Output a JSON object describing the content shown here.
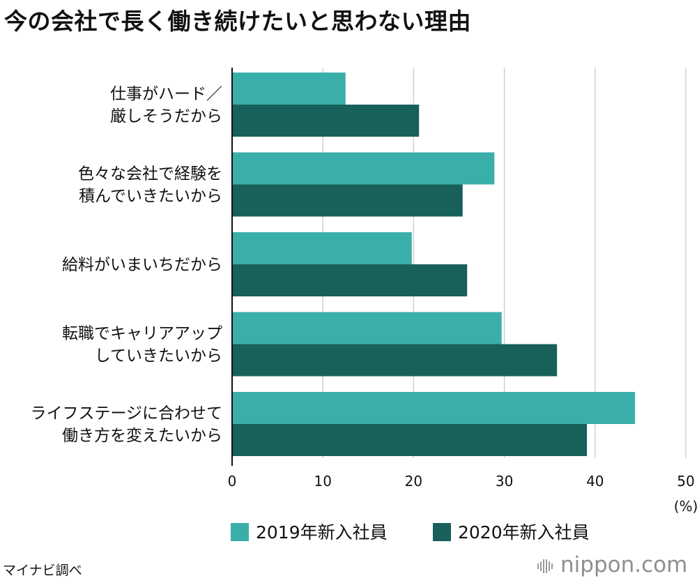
{
  "chart_data": {
    "type": "bar",
    "orientation": "horizontal",
    "title": "今の会社で長く働き続けたいと思わない理由",
    "categories": [
      [
        "仕事がハード／",
        "厳しそうだから"
      ],
      [
        "色々な会社で経験を",
        "積んでいきたいから"
      ],
      [
        "給料がいまいちだから"
      ],
      [
        "転職でキャリアアップ",
        "していきたいから"
      ],
      [
        "ライフステージに合わせて",
        "働き方を変えたいから"
      ]
    ],
    "series": [
      {
        "name": "2019年新入社員",
        "color": "#3aafa9",
        "values": [
          12.5,
          28.9,
          19.8,
          29.7,
          44.4
        ]
      },
      {
        "name": "2020年新入社員",
        "color": "#18605a",
        "values": [
          20.6,
          25.4,
          25.9,
          35.8,
          39.1
        ]
      }
    ],
    "xlim": [
      0,
      50
    ],
    "xticks": [
      "0",
      "10",
      "20",
      "30",
      "40",
      "50"
    ],
    "unit": "(%)",
    "grid": true,
    "legend_position": "bottom"
  },
  "source": "マイナビ調べ",
  "logo": {
    "text": "nippon.com",
    "color": "#8f8f8f"
  }
}
